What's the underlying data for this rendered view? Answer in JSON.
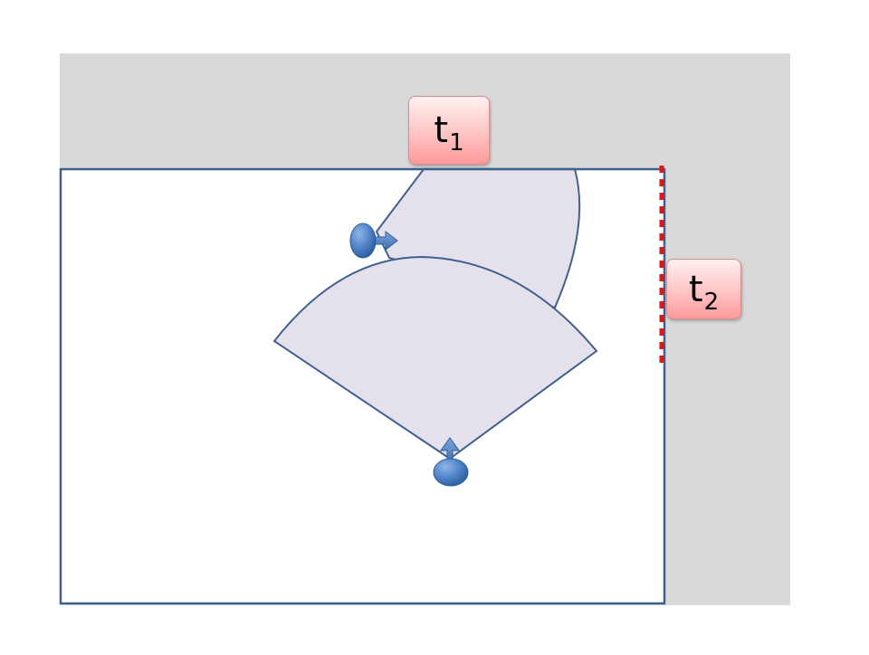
{
  "labels": {
    "t1": {
      "main": "t",
      "sub": "1"
    },
    "t2": {
      "main": "t",
      "sub": "2"
    }
  },
  "colors": {
    "background": "#ffffff",
    "outer_region": "#d9d9d9",
    "room_fill": "#ffffff",
    "room_border": "#41608c",
    "sector_fill": "#e4e0ec",
    "sector_border": "#41608c",
    "agent_fill": "#4a7fc4",
    "boundary_marker": "#e0151a",
    "label_fill": "#ffb3b3"
  },
  "icons": {
    "agent": "agent-ellipse-icon",
    "direction": "direction-arrow-icon"
  }
}
